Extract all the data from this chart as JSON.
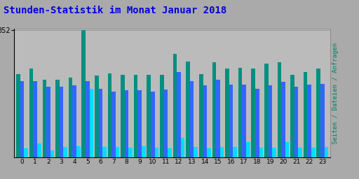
{
  "title": "Stunden-Statistik im Monat Januar 2018",
  "title_color": "#0000DD",
  "title_fontsize": 10,
  "hours": [
    0,
    1,
    2,
    3,
    4,
    5,
    6,
    7,
    8,
    9,
    10,
    11,
    12,
    13,
    14,
    15,
    16,
    17,
    18,
    19,
    20,
    21,
    22,
    23
  ],
  "seiten": [
    230,
    245,
    215,
    215,
    220,
    352,
    225,
    232,
    228,
    228,
    228,
    228,
    285,
    265,
    230,
    262,
    245,
    248,
    245,
    258,
    262,
    228,
    235,
    245
  ],
  "dateien": [
    210,
    210,
    195,
    195,
    198,
    210,
    190,
    182,
    185,
    185,
    182,
    188,
    235,
    210,
    198,
    215,
    200,
    200,
    190,
    198,
    208,
    195,
    200,
    202
  ],
  "anfragen": [
    25,
    40,
    20,
    30,
    32,
    190,
    30,
    30,
    28,
    32,
    28,
    25,
    55,
    30,
    25,
    30,
    30,
    42,
    28,
    28,
    42,
    28,
    28,
    30
  ],
  "seiten_color": "#009080",
  "dateien_color": "#3366FF",
  "anfragen_color": "#00DDFF",
  "bg_color": "#AAAAAA",
  "plot_bg_color": "#BBBBBB",
  "ylabel": "Seiten / Dateien / Anfragen",
  "ylabel_color": "#008060",
  "ytick_label": "352",
  "ytick_value": 352,
  "ylim": [
    0,
    355
  ],
  "bar_width": 0.3
}
